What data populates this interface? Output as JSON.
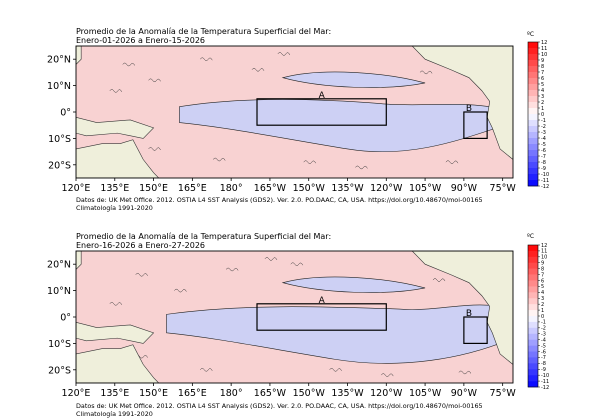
{
  "unit": "ºC",
  "colorbar_ticks": [
    "12",
    "11",
    "10",
    "9",
    "8",
    "7",
    "6",
    "5",
    "4",
    "3",
    "2",
    "1",
    "0",
    "-1",
    "-2",
    "-3",
    "-4",
    "-5",
    "-6",
    "-7",
    "-8",
    "-9",
    "-10",
    "-11",
    "-12"
  ],
  "lon_ticks": [
    "120°E",
    "135°E",
    "150°E",
    "165°E",
    "180°",
    "165°W",
    "150°W",
    "135°W",
    "120°W",
    "105°W",
    "90°W",
    "75°W"
  ],
  "lat_ticks": [
    "20°N",
    "10°N",
    "0°",
    "10°S",
    "20°S"
  ],
  "colors": {
    "warm_pale": "#f8d2d2",
    "cool_pale": "#cdd0f4",
    "land": "#efefdb",
    "cb_warm": "#e00000",
    "cb_cool": "#0000e0"
  },
  "panels": [
    {
      "title_line1": "Promedio de la Anomalía de la Temperatura Superficial del Mar:",
      "title_line2": "Enero-01-2026 a Enero-15-2026",
      "box_a_label": "A",
      "box_b_label": "B",
      "credit_line1": "Datos de: UK Met Office. 2012. OSTIA L4 SST Analysis (GDS2). Ver. 2.0. PO.DAAC, CA, USA. https://doi.org/10.48670/moi-00165",
      "credit_line2": "Climatología 1991-2020"
    },
    {
      "title_line1": "Promedio de la Anomalía de la Temperatura Superficial del Mar:",
      "title_line2": "Enero-16-2026 a Enero-27-2026",
      "box_a_label": "A",
      "box_b_label": "B",
      "credit_line1": "Datos de: UK Met Office. 2012. OSTIA L4 SST Analysis (GDS2). Ver. 2.0. PO.DAAC, CA, USA. https://doi.org/10.48670/moi-00165",
      "credit_line2": "Climatología 1991-2020"
    }
  ]
}
